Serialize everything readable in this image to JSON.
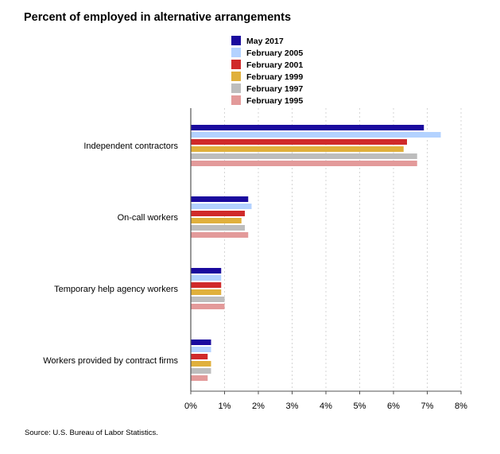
{
  "title": "Percent of employed in alternative arrangements",
  "source": "Source: U.S. Bureau of Labor Statistics.",
  "chart_data": {
    "type": "bar",
    "orientation": "horizontal",
    "title": "Percent of employed in alternative arrangements",
    "xlabel": "",
    "ylabel": "",
    "categories": [
      "Independent contractors",
      "On-call workers",
      "Temporary help agency workers",
      "Workers provided by contract firms"
    ],
    "series": [
      {
        "name": "May 2017",
        "color": "#1a0a9e",
        "values": [
          6.9,
          1.7,
          0.9,
          0.6
        ]
      },
      {
        "name": "February 2005",
        "color": "#b3d2ff",
        "values": [
          7.4,
          1.8,
          0.9,
          0.6
        ]
      },
      {
        "name": "February 2001",
        "color": "#d02a2a",
        "values": [
          6.4,
          1.6,
          0.9,
          0.5
        ]
      },
      {
        "name": "February 1999",
        "color": "#e0b03c",
        "values": [
          6.3,
          1.5,
          0.9,
          0.6
        ]
      },
      {
        "name": "February 1997",
        "color": "#bdbdbd",
        "values": [
          6.7,
          1.6,
          1.0,
          0.6
        ]
      },
      {
        "name": "February 1995",
        "color": "#e39a9a",
        "values": [
          6.7,
          1.7,
          1.0,
          0.5
        ]
      }
    ],
    "xlim": [
      0,
      8
    ],
    "xticks": [
      "0%",
      "1%",
      "2%",
      "3%",
      "4%",
      "5%",
      "6%",
      "7%",
      "8%"
    ],
    "grid": true,
    "legend_position": "top"
  }
}
